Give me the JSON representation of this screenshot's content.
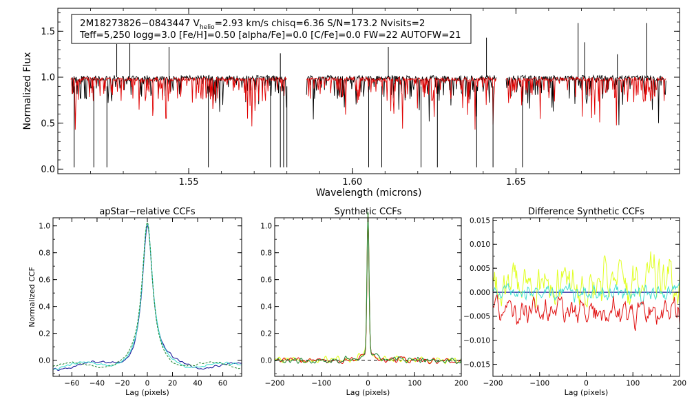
{
  "figure": {
    "info_line1_prefix": "2M18273826−0843447  V",
    "info_line1_sub": "helio",
    "info_line1_suffix": "=2.93 km/s  chisq=6.36  S/N=173.2  Nvisits=2",
    "info_line2": "Teff=5,250 logg=3.0 [Fe/H]=0.50 [alpha/Fe]=0.0 [C/Fe]=0.0 FW=22 AUTOFW=21"
  },
  "colors": {
    "observed": "#000000",
    "model": "#e00000",
    "visit1": "#1a1a9a",
    "visit2": "#40e0d0",
    "visit3": "#e0ff20",
    "visit4": "#e01010",
    "model_ccf": "#2a8a3a"
  },
  "chart_data": [
    {
      "id": "spectrum",
      "type": "line",
      "title": "",
      "xlabel": "Wavelength (microns)",
      "ylabel": "Normalized Flux",
      "xlim": [
        1.51,
        1.7
      ],
      "ylim": [
        -0.05,
        1.75
      ],
      "xticks": [
        1.55,
        1.6,
        1.65
      ],
      "xtick_labels": [
        "1.55",
        "1.60",
        "1.65"
      ],
      "yticks": [
        0.0,
        0.5,
        1.0,
        1.5
      ],
      "ytick_labels": [
        "0.0",
        "0.5",
        "1.0",
        "1.5"
      ],
      "chip_ranges": [
        [
          1.514,
          1.58
        ],
        [
          1.586,
          1.644
        ],
        [
          1.647,
          1.696
        ]
      ],
      "continuum": 1.0,
      "series": [
        {
          "name": "observed",
          "color": "#000000"
        },
        {
          "name": "model",
          "color": "#e00000"
        }
      ],
      "emission_spikes": [
        [
          1.528,
          1.36
        ],
        [
          1.532,
          1.42
        ],
        [
          1.544,
          1.33
        ],
        [
          1.578,
          1.26
        ],
        [
          1.611,
          1.33
        ],
        [
          1.641,
          1.43
        ],
        [
          1.669,
          1.59
        ],
        [
          1.671,
          1.38
        ],
        [
          1.681,
          1.25
        ],
        [
          1.69,
          1.59
        ]
      ],
      "absorption_spikes": [
        [
          1.515,
          0.02
        ],
        [
          1.521,
          0.02
        ],
        [
          1.525,
          0.02
        ],
        [
          1.556,
          0.02
        ],
        [
          1.575,
          0.02
        ],
        [
          1.578,
          0.02
        ],
        [
          1.579,
          0.02
        ],
        [
          1.58,
          0.02
        ],
        [
          1.605,
          0.02
        ],
        [
          1.609,
          0.02
        ],
        [
          1.621,
          0.02
        ],
        [
          1.626,
          0.02
        ],
        [
          1.638,
          0.02
        ],
        [
          1.643,
          0.02
        ],
        [
          1.652,
          0.02
        ]
      ]
    },
    {
      "id": "ccf-apstar",
      "type": "line",
      "title": "apStar−relative CCFs",
      "xlabel": "Lag (pixels)",
      "ylabel": "Normalized CCF",
      "xlim": [
        -75,
        75
      ],
      "ylim": [
        -0.12,
        1.06
      ],
      "xticks": [
        -60,
        -40,
        -20,
        0,
        20,
        40,
        60
      ],
      "xtick_labels": [
        "−60",
        "−40",
        "−20",
        "0",
        "20",
        "40",
        "60"
      ],
      "yticks": [
        0.0,
        0.2,
        0.4,
        0.6,
        0.8,
        1.0
      ],
      "ytick_labels": [
        "0.0",
        "0.2",
        "0.4",
        "0.6",
        "0.8",
        "1.0"
      ],
      "peak_lag": 0,
      "peak_value": 1.0,
      "baseline": -0.05,
      "series": [
        {
          "name": "visit-1",
          "color": "#1a1a9a"
        },
        {
          "name": "visit-2",
          "color": "#40e0d0"
        },
        {
          "name": "model",
          "color": "#2a8a3a",
          "dashed": true
        }
      ]
    },
    {
      "id": "ccf-synthetic",
      "type": "line",
      "title": "Synthetic CCFs",
      "xlabel": "Lag (pixels)",
      "ylabel": "",
      "xlim": [
        -200,
        200
      ],
      "ylim": [
        -0.12,
        1.06
      ],
      "xticks": [
        -200,
        -100,
        0,
        100,
        200
      ],
      "xtick_labels": [
        "−200",
        "−100",
        "0",
        "100",
        "200"
      ],
      "yticks": [
        0.0,
        0.2,
        0.4,
        0.6,
        0.8,
        1.0
      ],
      "ytick_labels": [
        "0.0",
        "0.2",
        "0.4",
        "0.6",
        "0.8",
        "1.0"
      ],
      "peak_lag": 0,
      "peak_value": 1.0,
      "baseline": 0.0,
      "series": [
        {
          "name": "synthetic-1",
          "color": "#e0ff20"
        },
        {
          "name": "synthetic-2",
          "color": "#e01010"
        },
        {
          "name": "synthetic-3",
          "color": "#2a8a3a"
        }
      ]
    },
    {
      "id": "ccf-difference",
      "type": "line",
      "title": "Difference Synthetic CCFs",
      "xlabel": "Lag (pixels)",
      "ylabel": "",
      "xlim": [
        -200,
        200
      ],
      "ylim": [
        -0.0175,
        0.0155
      ],
      "xticks": [
        -200,
        -100,
        0,
        100,
        200
      ],
      "xtick_labels": [
        "−200",
        "−100",
        "0",
        "100",
        "200"
      ],
      "yticks": [
        -0.015,
        -0.01,
        -0.005,
        0.0,
        0.005,
        0.01,
        0.015
      ],
      "ytick_labels": [
        "−0.015",
        "−0.010",
        "−0.005",
        "0.000",
        "0.005",
        "0.010",
        "0.015"
      ],
      "series": [
        {
          "name": "diff-yellow",
          "color": "#e0ff20",
          "amplitude": 0.0065
        },
        {
          "name": "diff-cyan",
          "color": "#40e0d0",
          "amplitude": 0.0025
        },
        {
          "name": "diff-red",
          "color": "#e01010",
          "amplitude": 0.004
        },
        {
          "name": "diff-blue",
          "color": "#1a1a9a",
          "amplitude": 0.0
        }
      ]
    }
  ]
}
